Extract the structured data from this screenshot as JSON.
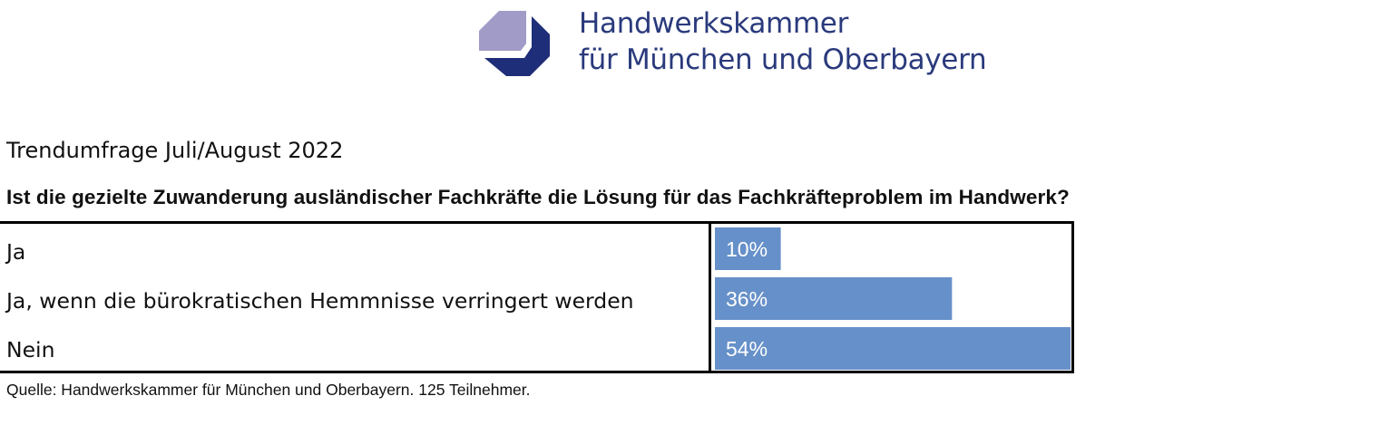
{
  "header": {
    "logo_name": "Handwerkskammer-logo-icon",
    "org_line1": "Handwerkskammer",
    "org_line2": "für München und Oberbayern"
  },
  "survey_label": "Trendumfrage Juli/August 2022",
  "question": "Ist die gezielte Zuwanderung ausländischer Fachkräfte die Lösung für das Fachkräfteproblem im Handwerk?",
  "source": "Quelle: Handwerkskammer für München und Oberbayern. 125 Teilnehmer.",
  "colors": {
    "bar": "#6690c9",
    "bar_text": "#ffffff",
    "logo_light": "#a09bc7",
    "logo_dark": "#1f2e78",
    "org_text": "#2a3a7c"
  },
  "chart_data": {
    "type": "bar",
    "orientation": "horizontal",
    "categories": [
      "Ja",
      "Ja, wenn die bürokratischen Hemmnisse verringert werden",
      "Nein"
    ],
    "values": [
      10,
      36,
      54
    ],
    "data_labels": [
      "10%",
      "36%",
      "54%"
    ],
    "unit": "%",
    "xlim": [
      0,
      54
    ],
    "title": "Ist die gezielte Zuwanderung ausländischer Fachkräfte die Lösung für das Fachkräfteproblem im Handwerk?",
    "grid": false,
    "legend": "none"
  }
}
